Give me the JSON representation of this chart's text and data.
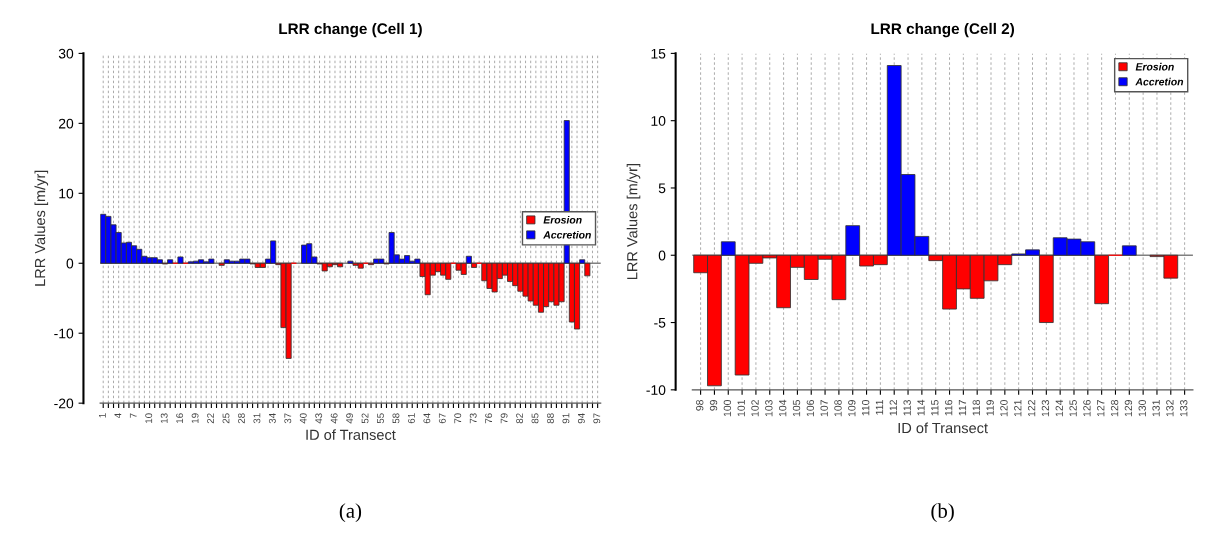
{
  "chart_data": [
    {
      "type": "bar",
      "stacked": true,
      "title": "LRR change (Cell 1)",
      "xlabel": "ID of Transect",
      "ylabel": "LRR Values [m/yr]",
      "annotations": [
        "(a)"
      ],
      "categories": [
        "1",
        null,
        null,
        "4",
        null,
        null,
        "7",
        null,
        null,
        "10",
        null,
        null,
        "13",
        null,
        null,
        "16",
        null,
        null,
        "19",
        null,
        null,
        "22",
        null,
        null,
        "25",
        null,
        null,
        "28",
        null,
        null,
        "31",
        null,
        null,
        "34",
        null,
        null,
        "37",
        null,
        null,
        "40",
        null,
        null,
        "43",
        null,
        null,
        "46",
        null,
        null,
        "49",
        null,
        null,
        "52",
        null,
        null,
        "55",
        null,
        null,
        "58",
        null,
        null,
        "61",
        null,
        null,
        "64",
        null,
        null,
        "67",
        null,
        null,
        "70",
        null,
        null,
        "73",
        null,
        null,
        "76",
        null,
        null,
        "79",
        null,
        null,
        "82",
        null,
        null,
        "85",
        null,
        null,
        "88",
        null,
        null,
        "91",
        null,
        null,
        "94",
        null,
        null,
        "97"
      ],
      "series": [
        {
          "name": "Erosion",
          "color": "#ff0000",
          "values": [
            null,
            null,
            null,
            null,
            null,
            null,
            null,
            null,
            null,
            null,
            null,
            null,
            -0.1,
            null,
            0,
            null,
            0,
            null,
            null,
            null,
            null,
            null,
            null,
            -0.3,
            null,
            null,
            null,
            null,
            null,
            -0.1,
            -0.6,
            -0.6,
            null,
            null,
            -0.2,
            -9.2,
            -13.6,
            0,
            null,
            null,
            null,
            null,
            -0.1,
            -1.1,
            -0.5,
            -0.2,
            -0.5,
            null,
            null,
            -0.3,
            -0.7,
            0,
            -0.2,
            null,
            null,
            -0.1,
            null,
            null,
            null,
            null,
            null,
            null,
            -1.9,
            -4.5,
            -1.7,
            -1.2,
            -1.7,
            -2.3,
            0,
            -1.0,
            -1.6,
            null,
            -0.6,
            0,
            -2.5,
            -3.6,
            -4.1,
            -2.2,
            -1.7,
            -2.6,
            -3.2,
            -4.0,
            -4.7,
            -5.4,
            -6.0,
            -7.0,
            -6.2,
            -5.5,
            -6.0,
            -5.5,
            null,
            -8.4,
            -9.4,
            null,
            -1.8,
            null,
            null
          ]
        },
        {
          "name": "Accretion",
          "color": "#0000ff",
          "values": [
            7.0,
            6.7,
            5.5,
            4.4,
            2.9,
            3.0,
            2.5,
            2.0,
            1.0,
            0.8,
            0.8,
            0.5,
            null,
            0.5,
            null,
            0.9,
            null,
            0.2,
            0.3,
            0.5,
            0.2,
            0.6,
            null,
            null,
            0.5,
            0.3,
            0.3,
            0.6,
            0.6,
            null,
            null,
            null,
            0.6,
            3.2,
            null,
            null,
            null,
            null,
            null,
            2.6,
            2.8,
            0.9,
            null,
            null,
            null,
            null,
            null,
            null,
            0.3,
            null,
            null,
            null,
            null,
            0.6,
            0.6,
            null,
            4.4,
            1.2,
            0.6,
            1.1,
            0.3,
            0.6,
            null,
            null,
            null,
            null,
            null,
            null,
            null,
            null,
            null,
            1.0,
            null,
            null,
            null,
            null,
            null,
            null,
            null,
            null,
            null,
            null,
            null,
            null,
            null,
            null,
            null,
            null,
            null,
            null,
            20.4,
            null,
            null,
            0.5,
            null,
            null,
            null
          ]
        }
      ],
      "ylim": [
        -20,
        30
      ],
      "yticks": [
        -20,
        -10,
        0,
        10,
        20,
        30
      ],
      "grid": "x",
      "legend": "right",
      "ref_lines": [
        {
          "axis": "y",
          "value": 0,
          "color": "#808080"
        }
      ]
    },
    {
      "type": "bar",
      "stacked": true,
      "title": "LRR change (Cell 2)",
      "xlabel": "ID of Transect",
      "ylabel": "LRR Values [m/yr]",
      "annotations": [
        "(b)"
      ],
      "categories": [
        "98",
        "99",
        "100",
        "101",
        "102",
        "103",
        "104",
        "105",
        "106",
        "107",
        "108",
        "109",
        "110",
        "111",
        "112",
        "113",
        "114",
        "115",
        "116",
        "117",
        "118",
        "119",
        "120",
        "121",
        "122",
        "123",
        "124",
        "125",
        "126",
        "127",
        "128",
        "129",
        "130",
        "131",
        "132",
        "133"
      ],
      "series": [
        {
          "name": "Erosion",
          "color": "#ff0000",
          "values": [
            -1.3,
            -9.7,
            null,
            -8.9,
            -0.6,
            -0.2,
            -3.9,
            -0.9,
            -1.8,
            -0.3,
            -3.3,
            null,
            -0.8,
            -0.7,
            null,
            null,
            null,
            -0.4,
            -4.0,
            -2.5,
            -3.2,
            -1.9,
            -0.7,
            null,
            null,
            -5.0,
            null,
            null,
            null,
            -3.6,
            0,
            null,
            null,
            -0.1,
            -1.7,
            null
          ]
        },
        {
          "name": "Accretion",
          "color": "#0000ff",
          "values": [
            null,
            null,
            1.0,
            null,
            null,
            null,
            null,
            null,
            null,
            null,
            null,
            2.2,
            null,
            null,
            14.1,
            6.0,
            1.4,
            null,
            null,
            null,
            null,
            null,
            null,
            0.1,
            0.4,
            null,
            1.3,
            1.2,
            1.0,
            null,
            null,
            0.7,
            null,
            null,
            null,
            null
          ]
        }
      ],
      "ylim": [
        -10,
        15
      ],
      "yticks": [
        -10,
        -5,
        0,
        5,
        10,
        15
      ],
      "grid": "x",
      "legend": "top right",
      "ref_lines": [
        {
          "axis": "y",
          "value": 0,
          "color": "#808080"
        }
      ]
    }
  ]
}
